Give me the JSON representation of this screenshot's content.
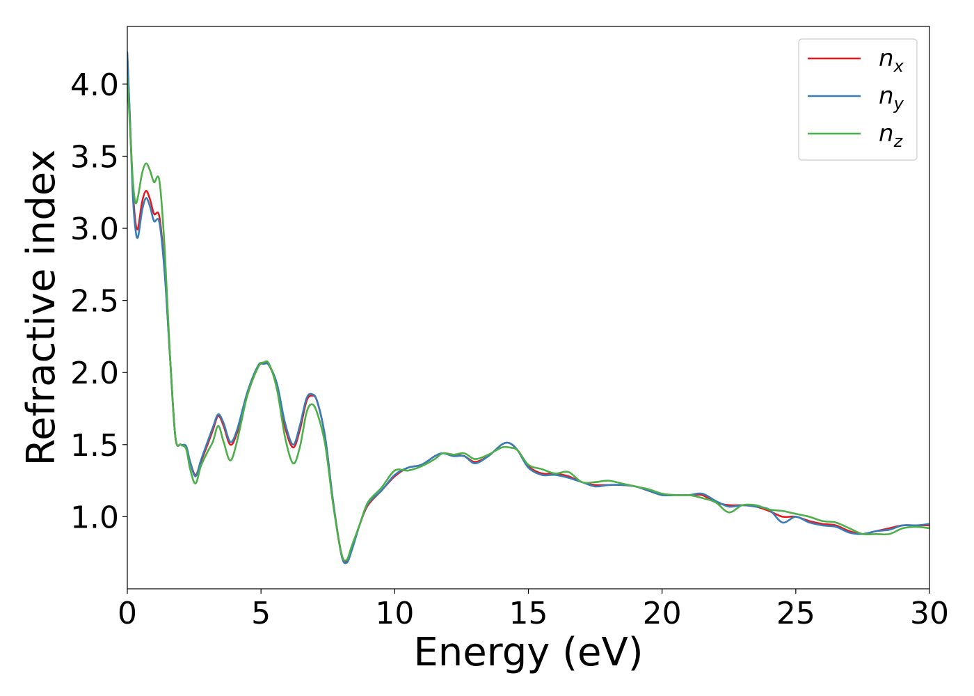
{
  "chart_data": {
    "type": "line",
    "title": "",
    "xlabel": "Energy (eV)",
    "ylabel": "Refractive index",
    "xlim": [
      0,
      30
    ],
    "ylim": [
      0.5,
      4.4
    ],
    "xticks": [
      0,
      5,
      10,
      15,
      20,
      25,
      30
    ],
    "yticks": [
      1.0,
      1.5,
      2.0,
      2.5,
      3.0,
      3.5,
      4.0
    ],
    "xtick_labels": [
      "0",
      "5",
      "10",
      "15",
      "20",
      "25",
      "30"
    ],
    "ytick_labels": [
      "1.0",
      "1.5",
      "2.0",
      "2.5",
      "3.0",
      "3.5",
      "4.0"
    ],
    "grid": false,
    "legend_position": "top-right",
    "series": [
      {
        "name": "n_x",
        "label_main": "n",
        "label_sub": "x",
        "color": "#e41a1c",
        "x": [
          0,
          0.1,
          0.2,
          0.3,
          0.4,
          0.55,
          0.7,
          0.85,
          1.0,
          1.2,
          1.4,
          1.6,
          1.8,
          2.0,
          2.2,
          2.35,
          2.55,
          2.75,
          3.0,
          3.2,
          3.4,
          3.6,
          3.85,
          4.1,
          4.5,
          4.9,
          5.1,
          5.3,
          5.6,
          5.9,
          6.2,
          6.45,
          6.7,
          6.9,
          7.1,
          7.4,
          7.7,
          8.0,
          8.2,
          8.4,
          8.7,
          9.0,
          9.5,
          10.0,
          10.5,
          11.0,
          11.5,
          11.8,
          12.2,
          12.6,
          13.0,
          13.5,
          14.0,
          14.3,
          14.6,
          15.0,
          15.5,
          16.0,
          16.5,
          17.0,
          17.5,
          18.0,
          18.5,
          19.0,
          19.5,
          20.0,
          20.5,
          21.0,
          21.5,
          22.0,
          22.5,
          23.0,
          23.5,
          24.0,
          24.5,
          25.0,
          25.5,
          26.0,
          26.5,
          27.0,
          27.5,
          28.0,
          28.5,
          29.0,
          29.5,
          30.0
        ],
        "y": [
          4.2,
          3.75,
          3.3,
          3.05,
          3.0,
          3.18,
          3.26,
          3.2,
          3.1,
          3.08,
          2.7,
          2.1,
          1.55,
          1.5,
          1.48,
          1.38,
          1.29,
          1.38,
          1.5,
          1.6,
          1.7,
          1.63,
          1.5,
          1.58,
          1.85,
          2.04,
          2.06,
          2.05,
          1.9,
          1.62,
          1.48,
          1.6,
          1.8,
          1.84,
          1.8,
          1.55,
          1.1,
          0.75,
          0.69,
          0.78,
          0.95,
          1.08,
          1.18,
          1.28,
          1.34,
          1.36,
          1.42,
          1.44,
          1.43,
          1.42,
          1.38,
          1.42,
          1.5,
          1.51,
          1.46,
          1.35,
          1.3,
          1.3,
          1.28,
          1.24,
          1.22,
          1.22,
          1.22,
          1.21,
          1.18,
          1.15,
          1.15,
          1.15,
          1.15,
          1.1,
          1.08,
          1.08,
          1.07,
          1.04,
          1.0,
          1.0,
          0.97,
          0.95,
          0.94,
          0.9,
          0.88,
          0.9,
          0.92,
          0.94,
          0.94,
          0.94
        ]
      },
      {
        "name": "n_y",
        "label_main": "n",
        "label_sub": "y",
        "color": "#377eb8",
        "x": [
          0,
          0.1,
          0.2,
          0.3,
          0.4,
          0.55,
          0.7,
          0.85,
          1.0,
          1.2,
          1.4,
          1.6,
          1.8,
          2.0,
          2.2,
          2.35,
          2.55,
          2.75,
          3.0,
          3.2,
          3.4,
          3.6,
          3.85,
          4.1,
          4.5,
          4.9,
          5.1,
          5.3,
          5.6,
          5.9,
          6.2,
          6.45,
          6.7,
          6.9,
          7.1,
          7.4,
          7.7,
          8.0,
          8.2,
          8.4,
          8.7,
          9.0,
          9.5,
          10.0,
          10.5,
          11.0,
          11.5,
          11.8,
          12.2,
          12.6,
          13.0,
          13.5,
          14.0,
          14.3,
          14.6,
          15.0,
          15.5,
          16.0,
          16.5,
          17.0,
          17.5,
          18.0,
          18.5,
          19.0,
          19.5,
          20.0,
          20.5,
          21.0,
          21.5,
          22.0,
          22.5,
          23.0,
          23.5,
          24.0,
          24.5,
          25.0,
          25.5,
          26.0,
          26.5,
          27.0,
          27.5,
          28.0,
          28.5,
          29.0,
          29.5,
          30.0
        ],
        "y": [
          4.22,
          3.75,
          3.25,
          3.0,
          2.94,
          3.12,
          3.21,
          3.15,
          3.05,
          3.04,
          2.68,
          2.1,
          1.55,
          1.5,
          1.49,
          1.38,
          1.28,
          1.39,
          1.52,
          1.62,
          1.71,
          1.65,
          1.52,
          1.6,
          1.87,
          2.05,
          2.06,
          2.05,
          1.92,
          1.65,
          1.5,
          1.63,
          1.82,
          1.85,
          1.8,
          1.55,
          1.1,
          0.74,
          0.68,
          0.77,
          0.95,
          1.09,
          1.18,
          1.29,
          1.34,
          1.36,
          1.42,
          1.44,
          1.42,
          1.42,
          1.37,
          1.42,
          1.5,
          1.51,
          1.46,
          1.34,
          1.29,
          1.29,
          1.27,
          1.24,
          1.21,
          1.22,
          1.22,
          1.21,
          1.18,
          1.15,
          1.15,
          1.15,
          1.16,
          1.11,
          1.07,
          1.08,
          1.07,
          1.05,
          0.96,
          1.0,
          0.96,
          0.94,
          0.93,
          0.89,
          0.88,
          0.9,
          0.91,
          0.94,
          0.94,
          0.95
        ]
      },
      {
        "name": "n_z",
        "label_main": "n",
        "label_sub": "z",
        "color": "#4daf4a",
        "x": [
          0,
          0.1,
          0.2,
          0.3,
          0.4,
          0.55,
          0.7,
          0.85,
          1.0,
          1.2,
          1.4,
          1.6,
          1.8,
          2.0,
          2.2,
          2.35,
          2.55,
          2.75,
          3.0,
          3.2,
          3.4,
          3.6,
          3.85,
          4.1,
          4.5,
          4.9,
          5.1,
          5.3,
          5.6,
          5.9,
          6.2,
          6.45,
          6.7,
          6.9,
          7.1,
          7.4,
          7.7,
          8.0,
          8.2,
          8.4,
          8.7,
          9.0,
          9.5,
          10.0,
          10.5,
          11.0,
          11.5,
          11.8,
          12.2,
          12.6,
          13.0,
          13.5,
          14.0,
          14.3,
          14.6,
          15.0,
          15.5,
          16.0,
          16.5,
          17.0,
          17.5,
          18.0,
          18.5,
          19.0,
          19.5,
          20.0,
          20.5,
          21.0,
          21.5,
          22.0,
          22.5,
          23.0,
          23.5,
          24.0,
          24.5,
          25.0,
          25.5,
          26.0,
          26.5,
          27.0,
          27.5,
          28.0,
          28.5,
          29.0,
          29.5,
          30.0
        ],
        "y": [
          4.05,
          3.7,
          3.35,
          3.18,
          3.22,
          3.38,
          3.45,
          3.4,
          3.32,
          3.33,
          2.85,
          2.1,
          1.55,
          1.5,
          1.47,
          1.33,
          1.23,
          1.35,
          1.45,
          1.52,
          1.63,
          1.52,
          1.39,
          1.52,
          1.85,
          2.04,
          2.07,
          2.06,
          1.88,
          1.55,
          1.37,
          1.48,
          1.72,
          1.78,
          1.72,
          1.5,
          1.08,
          0.75,
          0.7,
          0.8,
          0.95,
          1.1,
          1.2,
          1.32,
          1.32,
          1.35,
          1.4,
          1.44,
          1.43,
          1.44,
          1.4,
          1.43,
          1.48,
          1.48,
          1.46,
          1.36,
          1.33,
          1.3,
          1.31,
          1.24,
          1.24,
          1.25,
          1.23,
          1.21,
          1.19,
          1.16,
          1.15,
          1.15,
          1.13,
          1.1,
          1.03,
          1.08,
          1.08,
          1.05,
          1.04,
          1.02,
          1.0,
          0.97,
          0.96,
          0.92,
          0.88,
          0.88,
          0.88,
          0.92,
          0.93,
          0.92
        ]
      }
    ]
  }
}
